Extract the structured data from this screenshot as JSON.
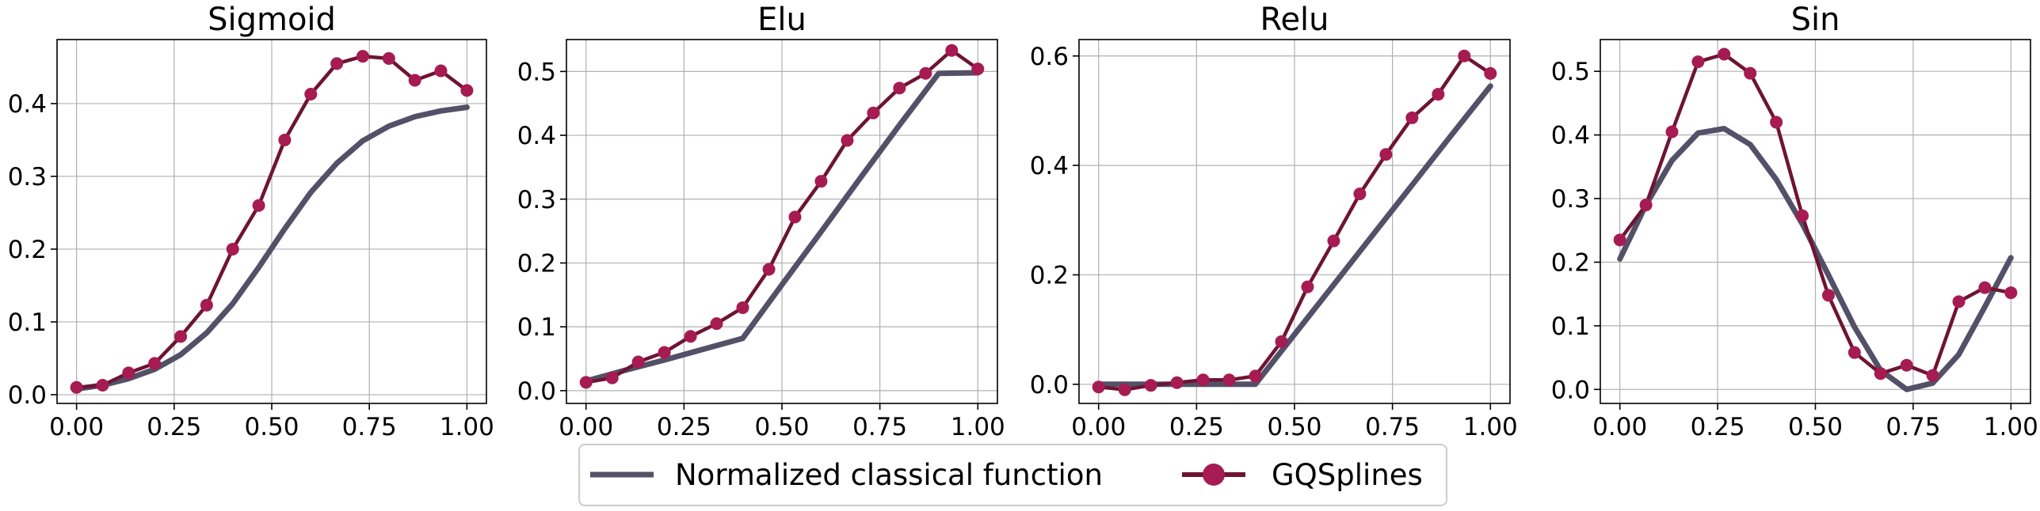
{
  "legend": {
    "classical_label": "Normalized classical function",
    "gq_label": "GQSplines"
  },
  "colors": {
    "classical": "#535068",
    "gq_line": "#6e1433",
    "gq_marker": "#a61b51",
    "grid": "#b0b0b0"
  },
  "chart_data": [
    {
      "type": "line",
      "title": "Sigmoid",
      "xlim": [
        -0.05,
        1.05
      ],
      "ylim": [
        -0.012,
        0.488
      ],
      "xticks": [
        0.0,
        0.25,
        0.5,
        0.75,
        1.0
      ],
      "xtick_labels": [
        "0.00",
        "0.25",
        "0.50",
        "0.75",
        "1.00"
      ],
      "yticks": [
        0.0,
        0.1,
        0.2,
        0.3,
        0.4
      ],
      "ytick_labels": [
        "0.0",
        "0.1",
        "0.2",
        "0.3",
        "0.4"
      ],
      "grid": true,
      "series": [
        {
          "name": "Normalized classical function",
          "x": [
            0.0,
            0.0667,
            0.1333,
            0.2,
            0.2667,
            0.3333,
            0.4,
            0.4667,
            0.5333,
            0.6,
            0.6667,
            0.7333,
            0.8,
            0.8667,
            0.9333,
            1.0
          ],
          "y": [
            0.008,
            0.013,
            0.022,
            0.035,
            0.055,
            0.085,
            0.125,
            0.175,
            0.228,
            0.278,
            0.318,
            0.349,
            0.369,
            0.382,
            0.39,
            0.395
          ]
        },
        {
          "name": "GQSplines",
          "x": [
            0.0,
            0.0667,
            0.1333,
            0.2,
            0.2667,
            0.3333,
            0.4,
            0.4667,
            0.5333,
            0.6,
            0.6667,
            0.7333,
            0.8,
            0.8667,
            0.9333,
            1.0
          ],
          "y": [
            0.01,
            0.013,
            0.03,
            0.043,
            0.08,
            0.123,
            0.2,
            0.26,
            0.35,
            0.413,
            0.455,
            0.465,
            0.462,
            0.432,
            0.445,
            0.418
          ]
        }
      ]
    },
    {
      "type": "line",
      "title": "Elu",
      "xlim": [
        -0.05,
        1.05
      ],
      "ylim": [
        -0.02,
        0.55
      ],
      "xticks": [
        0.0,
        0.25,
        0.5,
        0.75,
        1.0
      ],
      "xtick_labels": [
        "0.00",
        "0.25",
        "0.50",
        "0.75",
        "1.00"
      ],
      "yticks": [
        0.0,
        0.1,
        0.2,
        0.3,
        0.4,
        0.5
      ],
      "ytick_labels": [
        "0.0",
        "0.1",
        "0.2",
        "0.3",
        "0.4",
        "0.5"
      ],
      "grid": true,
      "series": [
        {
          "name": "Normalized classical function",
          "x": [
            0.0,
            0.1,
            0.2,
            0.3,
            0.4,
            0.5,
            0.6,
            0.7,
            0.8,
            0.9,
            1.0
          ],
          "y": [
            0.015,
            0.032,
            0.048,
            0.065,
            0.082,
            0.166,
            0.249,
            0.333,
            0.416,
            0.497,
            0.498
          ]
        },
        {
          "name": "GQSplines",
          "x": [
            0.0,
            0.0667,
            0.1333,
            0.2,
            0.2667,
            0.3333,
            0.4,
            0.4667,
            0.5333,
            0.6,
            0.6667,
            0.7333,
            0.8,
            0.8667,
            0.9333,
            1.0
          ],
          "y": [
            0.013,
            0.02,
            0.045,
            0.06,
            0.085,
            0.105,
            0.13,
            0.19,
            0.272,
            0.328,
            0.392,
            0.435,
            0.474,
            0.497,
            0.533,
            0.504
          ]
        }
      ]
    },
    {
      "type": "line",
      "title": "Relu",
      "xlim": [
        -0.05,
        1.05
      ],
      "ylim": [
        -0.035,
        0.63
      ],
      "xticks": [
        0.0,
        0.25,
        0.5,
        0.75,
        1.0
      ],
      "xtick_labels": [
        "0.00",
        "0.25",
        "0.50",
        "0.75",
        "1.00"
      ],
      "yticks": [
        0.0,
        0.2,
        0.4,
        0.6
      ],
      "ytick_labels": [
        "0.0",
        "0.2",
        "0.4",
        "0.6"
      ],
      "grid": true,
      "series": [
        {
          "name": "Normalized classical function",
          "x": [
            0.0,
            0.1,
            0.2,
            0.3,
            0.4,
            0.5,
            0.6,
            0.7,
            0.8,
            0.9,
            1.0
          ],
          "y": [
            0.0,
            0.0,
            0.0,
            0.0,
            0.0,
            0.091,
            0.182,
            0.273,
            0.364,
            0.455,
            0.545
          ]
        },
        {
          "name": "GQSplines",
          "x": [
            0.0,
            0.0667,
            0.1333,
            0.2,
            0.2667,
            0.3333,
            0.4,
            0.4667,
            0.5333,
            0.6,
            0.6667,
            0.7333,
            0.8,
            0.8667,
            0.9333,
            1.0
          ],
          "y": [
            -0.005,
            -0.01,
            -0.002,
            0.003,
            0.008,
            0.008,
            0.015,
            0.078,
            0.178,
            0.262,
            0.348,
            0.42,
            0.487,
            0.53,
            0.6,
            0.568
          ]
        }
      ]
    },
    {
      "type": "line",
      "title": "Sin",
      "xlim": [
        -0.05,
        1.05
      ],
      "ylim": [
        -0.022,
        0.55
      ],
      "xticks": [
        0.0,
        0.25,
        0.5,
        0.75,
        1.0
      ],
      "xtick_labels": [
        "0.00",
        "0.25",
        "0.50",
        "0.75",
        "1.00"
      ],
      "yticks": [
        0.0,
        0.1,
        0.2,
        0.3,
        0.4,
        0.5
      ],
      "ytick_labels": [
        "0.0",
        "0.1",
        "0.2",
        "0.3",
        "0.4",
        "0.5"
      ],
      "grid": true,
      "series": [
        {
          "name": "Normalized classical function",
          "x": [
            0.0,
            0.0667,
            0.1333,
            0.2,
            0.2667,
            0.3333,
            0.4,
            0.4667,
            0.5333,
            0.6,
            0.6667,
            0.7333,
            0.8,
            0.8667,
            0.9333,
            1.0
          ],
          "y": [
            0.205,
            0.29,
            0.36,
            0.403,
            0.41,
            0.385,
            0.33,
            0.26,
            0.18,
            0.098,
            0.03,
            0.0,
            0.01,
            0.055,
            0.13,
            0.207
          ]
        },
        {
          "name": "GQSplines",
          "x": [
            0.0,
            0.0667,
            0.1333,
            0.2,
            0.2667,
            0.3333,
            0.4,
            0.4667,
            0.5333,
            0.6,
            0.6667,
            0.7333,
            0.8,
            0.8667,
            0.9333,
            1.0
          ],
          "y": [
            0.235,
            0.29,
            0.405,
            0.515,
            0.527,
            0.497,
            0.42,
            0.273,
            0.148,
            0.058,
            0.025,
            0.038,
            0.022,
            0.138,
            0.16,
            0.152
          ]
        }
      ]
    }
  ]
}
